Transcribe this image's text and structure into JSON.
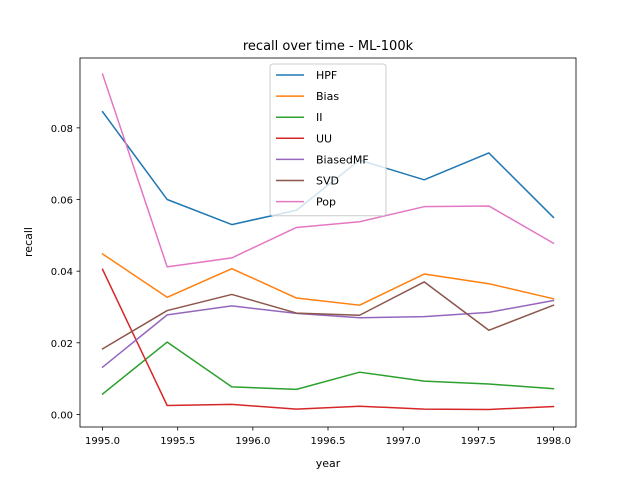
{
  "chart_data": {
    "type": "line",
    "title": "recall over time - ML-100k",
    "xlabel": "year",
    "ylabel": "recall",
    "xlim": [
      1994.85,
      1998.15
    ],
    "ylim": [
      -0.0035,
      0.0995
    ],
    "xticks": [
      1995.0,
      1995.5,
      1996.0,
      1996.5,
      1997.0,
      1997.5,
      1998.0
    ],
    "xtick_labels": [
      "1995.0",
      "1995.5",
      "1996.0",
      "1996.5",
      "1997.0",
      "1997.5",
      "1998.0"
    ],
    "yticks": [
      0.0,
      0.02,
      0.04,
      0.06,
      0.08
    ],
    "ytick_labels": [
      "0.00",
      "0.02",
      "0.04",
      "0.06",
      "0.08"
    ],
    "grid": false,
    "legend_position": "top-center",
    "x": [
      1995.0,
      1995.43,
      1995.86,
      1996.29,
      1996.71,
      1997.14,
      1997.57,
      1998.0
    ],
    "series": [
      {
        "name": "HPF",
        "color": "#1f77b4",
        "values": [
          0.0845,
          0.06,
          0.053,
          0.057,
          0.071,
          0.0655,
          0.073,
          0.055
        ]
      },
      {
        "name": "Bias",
        "color": "#ff7f0e",
        "values": [
          0.0448,
          0.0327,
          0.0407,
          0.0325,
          0.0305,
          0.0392,
          0.0365,
          0.0323
        ]
      },
      {
        "name": "II",
        "color": "#2ca02c",
        "values": [
          0.0057,
          0.0202,
          0.0077,
          0.007,
          0.0118,
          0.0093,
          0.0085,
          0.0072
        ]
      },
      {
        "name": "UU",
        "color": "#d62728",
        "values": [
          0.0405,
          0.0025,
          0.0028,
          0.0015,
          0.0023,
          0.0015,
          0.0014,
          0.0022
        ]
      },
      {
        "name": "BiasedMF",
        "color": "#9467bd",
        "values": [
          0.0132,
          0.0278,
          0.0303,
          0.0282,
          0.027,
          0.0273,
          0.0285,
          0.0318
        ]
      },
      {
        "name": "SVD",
        "color": "#8c564b",
        "values": [
          0.0183,
          0.029,
          0.0335,
          0.0283,
          0.0277,
          0.037,
          0.0235,
          0.0305
        ]
      },
      {
        "name": "Pop",
        "color": "#e377c2",
        "values": [
          0.095,
          0.0412,
          0.0437,
          0.0522,
          0.0538,
          0.058,
          0.0582,
          0.0478
        ]
      }
    ]
  }
}
